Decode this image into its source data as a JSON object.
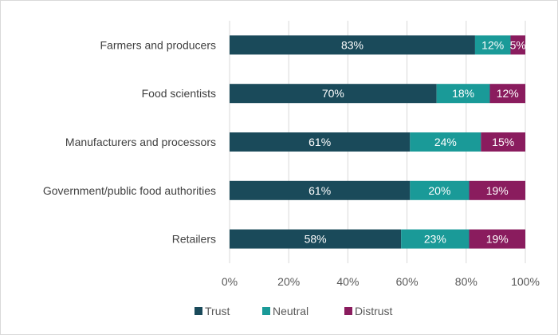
{
  "chart_data": {
    "type": "bar",
    "orientation": "horizontal",
    "stacked": true,
    "categories": [
      "Farmers and producers",
      "Food scientists",
      "Manufacturers and processors",
      "Government/public food authorities",
      "Retailers"
    ],
    "series": [
      {
        "name": "Trust",
        "color": "#1a4a5a",
        "values": [
          83,
          70,
          61,
          61,
          58
        ],
        "labels": [
          "83%",
          "70%",
          "61%",
          "61%",
          "58%"
        ]
      },
      {
        "name": "Neutral",
        "color": "#1a9a98",
        "values": [
          12,
          18,
          24,
          20,
          23
        ],
        "labels": [
          "12%",
          "18%",
          "24%",
          "20%",
          "23%"
        ]
      },
      {
        "name": "Distrust",
        "color": "#8a1c5e",
        "values": [
          5,
          12,
          15,
          19,
          19
        ],
        "labels": [
          "5%",
          "12%",
          "15%",
          "19%",
          "19%"
        ]
      }
    ],
    "xlim": [
      0,
      100
    ],
    "xticks": [
      0,
      20,
      40,
      60,
      80,
      100
    ],
    "xtick_labels": [
      "0%",
      "20%",
      "40%",
      "60%",
      "80%",
      "100%"
    ],
    "grid": "vertical",
    "legend": "bottom",
    "title": "",
    "xlabel": "",
    "ylabel": ""
  }
}
